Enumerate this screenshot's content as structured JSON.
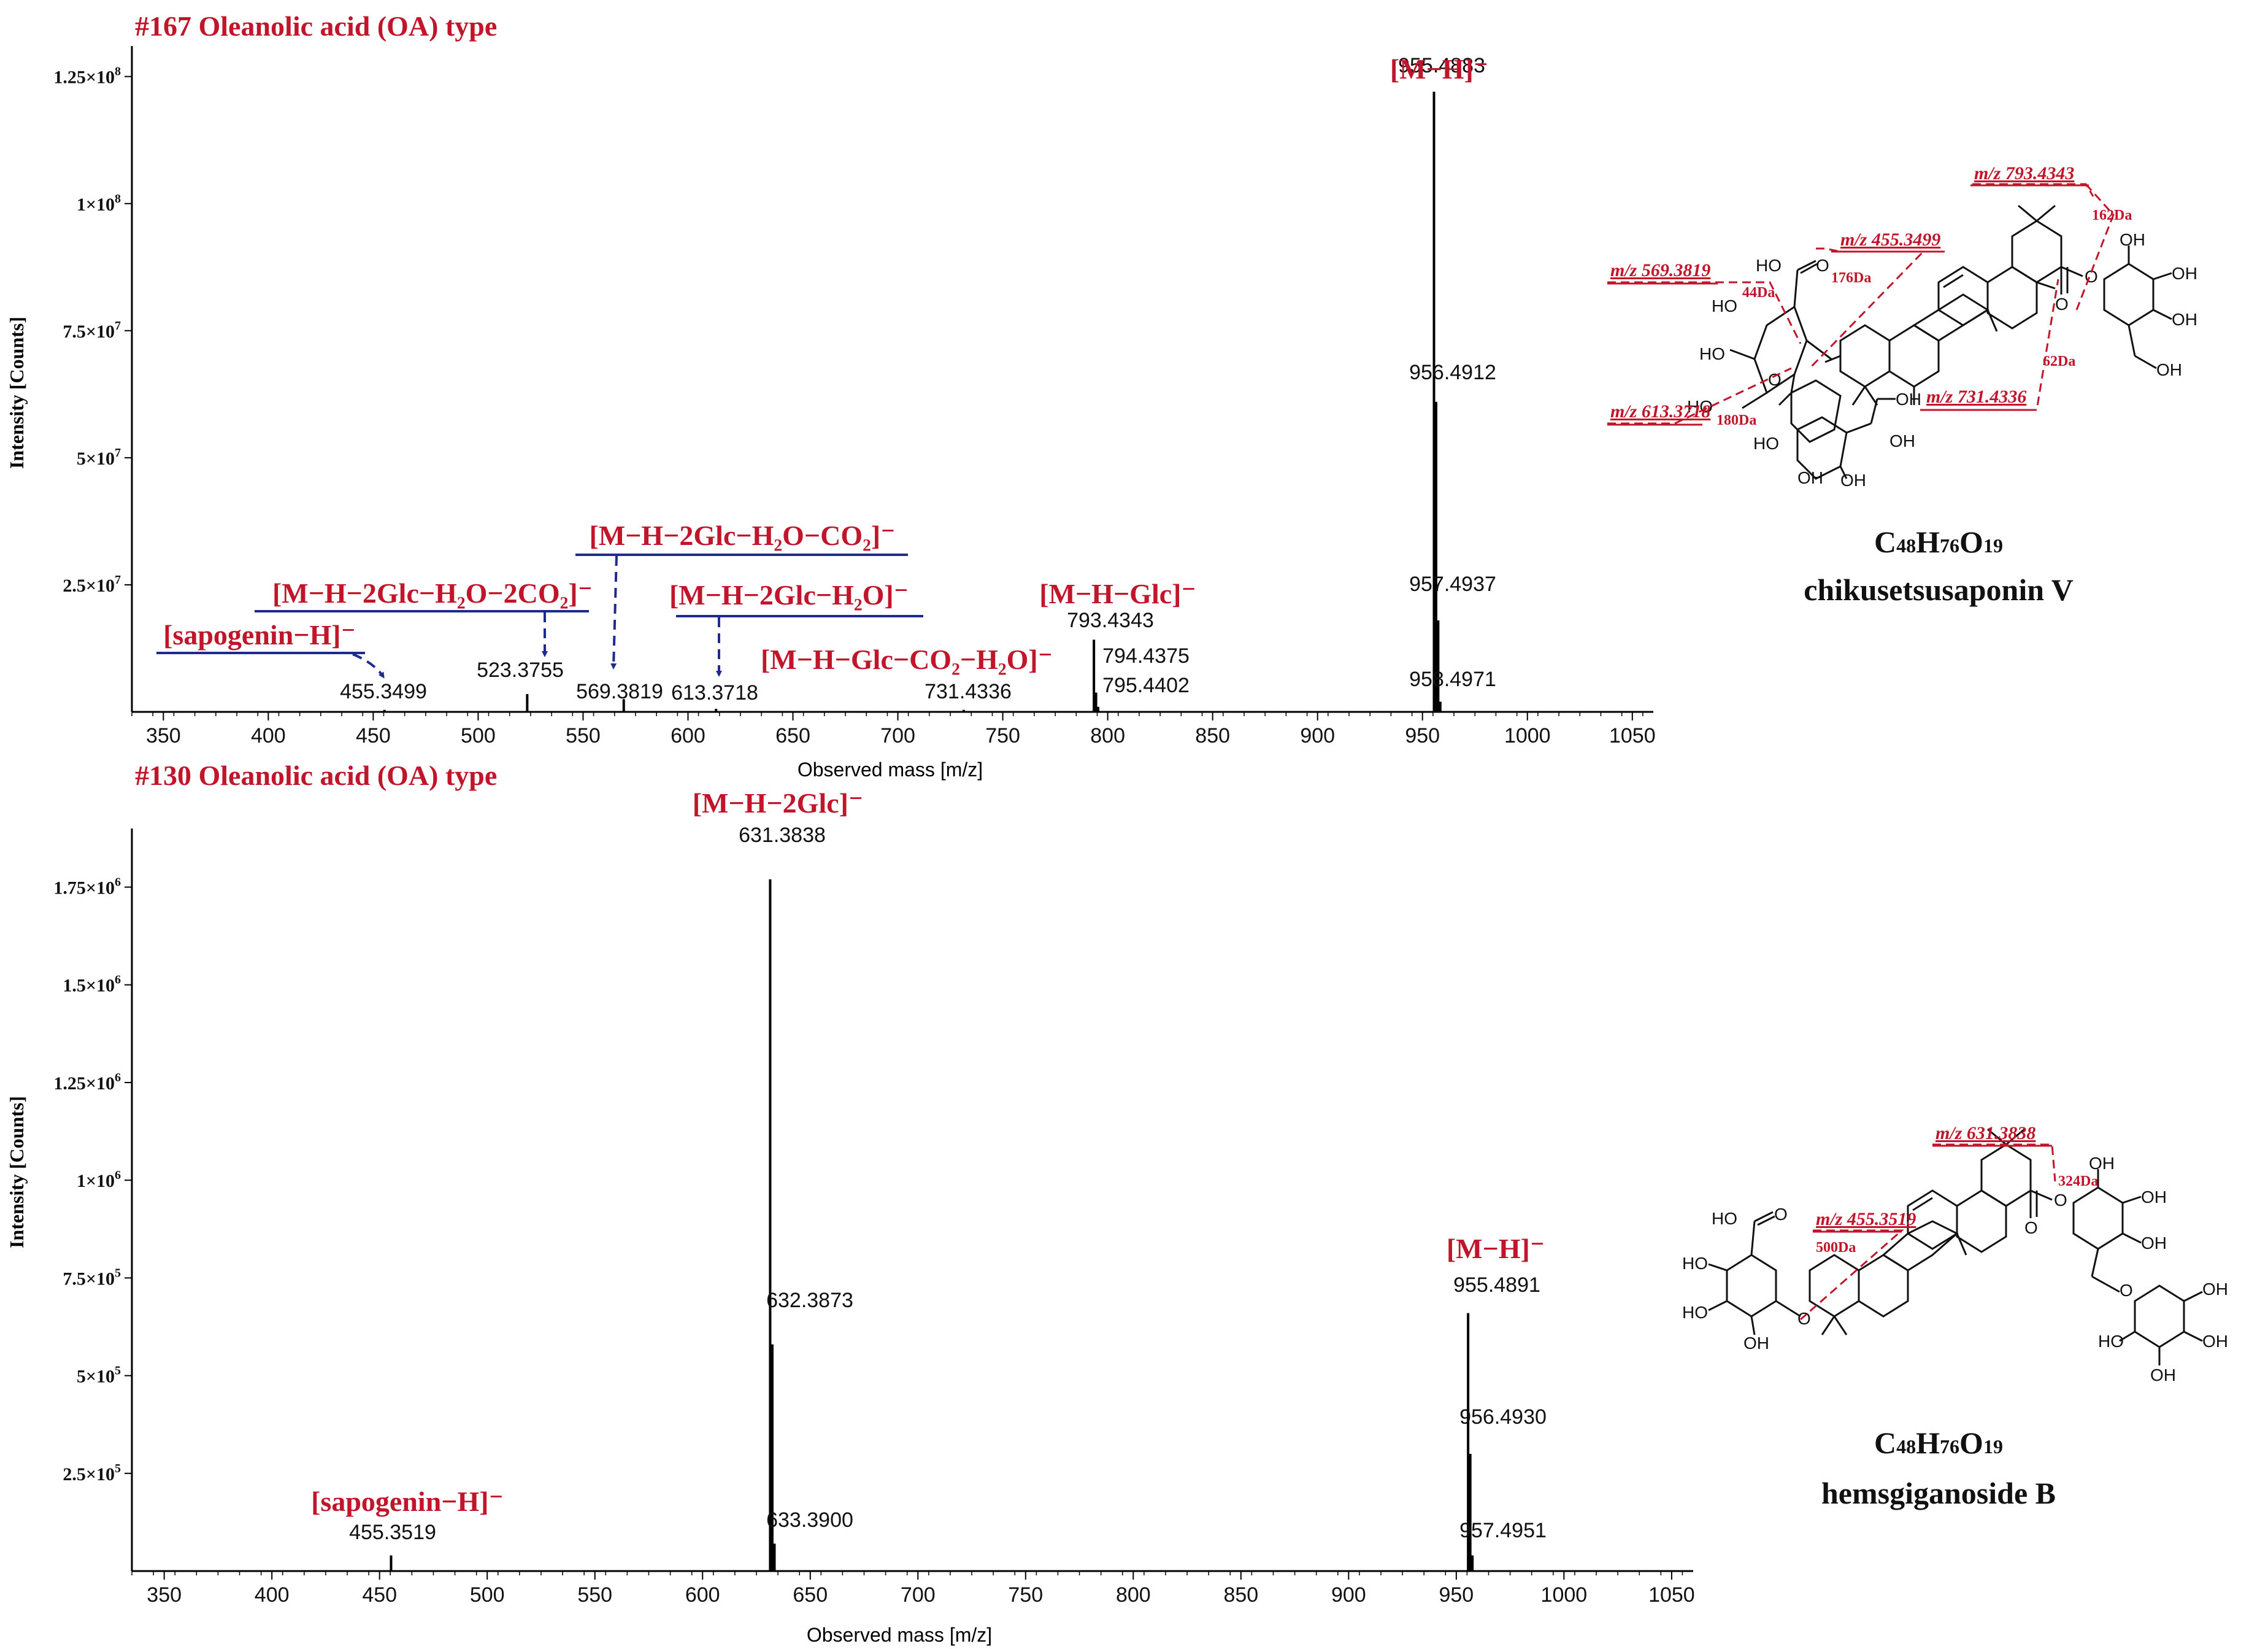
{
  "colors": {
    "title": "#c0152a",
    "blue": "#1e2a8f",
    "axis": "#000000",
    "bond": "#111111"
  },
  "chart_data": [
    {
      "type": "bar",
      "title": "#167 Oleanolic acid (OA) type",
      "xlabel": "Observed mass [m/z]",
      "ylabel": "Intensity [Counts]",
      "xlim": [
        335,
        1060
      ],
      "ylim": [
        0,
        131000000
      ],
      "xticks": [
        350,
        400,
        450,
        500,
        550,
        600,
        650,
        700,
        750,
        800,
        850,
        900,
        950,
        1000,
        1050
      ],
      "yticks": [
        {
          "value": 25000000,
          "mant": "2.5",
          "exp": "7"
        },
        {
          "value": 50000000,
          "mant": "5",
          "exp": "7"
        },
        {
          "value": 75000000,
          "mant": "7.5",
          "exp": "7"
        },
        {
          "value": 100000000,
          "mant": "1",
          "exp": "8"
        },
        {
          "value": 125000000,
          "mant": "1.25",
          "exp": "8"
        }
      ],
      "peaks": [
        {
          "mz": 455.3499,
          "intensity": 400000,
          "label": "455.3499"
        },
        {
          "mz": 523.3755,
          "intensity": 3500000,
          "label": "523.3755"
        },
        {
          "mz": 569.3819,
          "intensity": 2500000,
          "label": "569.3819"
        },
        {
          "mz": 613.3718,
          "intensity": 600000,
          "label": "613.3718"
        },
        {
          "mz": 731.4336,
          "intensity": 400000,
          "label": "731.4336"
        },
        {
          "mz": 793.4343,
          "intensity": 14200000,
          "label": "793.4343"
        },
        {
          "mz": 794.4375,
          "intensity": 3800000,
          "label": "794.4375"
        },
        {
          "mz": 795.4402,
          "intensity": 1000000,
          "label": "795.4402"
        },
        {
          "mz": 955.4883,
          "intensity": 122000000,
          "label": "955.4883"
        },
        {
          "mz": 956.4912,
          "intensity": 61000000,
          "label": "956.4912"
        },
        {
          "mz": 957.4937,
          "intensity": 18000000,
          "label": "957.4937"
        },
        {
          "mz": 958.4971,
          "intensity": 2000000,
          "label": "958.4971"
        }
      ],
      "annotations": [
        {
          "text": "[M−H]⁻",
          "color": "red"
        },
        {
          "text": "[M−H−Glc]⁻",
          "color": "red"
        },
        {
          "text": "[M−H−Glc−CO₂−H₂O]⁻",
          "color": "red"
        },
        {
          "text": "[M−H−2Glc−H₂O−CO₂]⁻",
          "color": "red"
        },
        {
          "text": "[M−H−2Glc−H₂O−2CO₂]⁻",
          "color": "red"
        },
        {
          "text": "[M−H−2Glc−H₂O]⁻",
          "color": "red"
        },
        {
          "text": "[sapogenin−H]⁻",
          "color": "red"
        }
      ]
    },
    {
      "type": "bar",
      "title": "#130 Oleanolic acid (OA) type",
      "xlabel": "Observed mass [m/z]",
      "ylabel": "Intensity [Counts]",
      "xlim": [
        335,
        1060
      ],
      "ylim": [
        0,
        1900000
      ],
      "xticks": [
        350,
        400,
        450,
        500,
        550,
        600,
        650,
        700,
        750,
        800,
        850,
        900,
        950,
        1000,
        1050
      ],
      "yticks": [
        {
          "value": 250000,
          "mant": "2.5",
          "exp": "5"
        },
        {
          "value": 500000,
          "mant": "5",
          "exp": "5"
        },
        {
          "value": 750000,
          "mant": "7.5",
          "exp": "5"
        },
        {
          "value": 1000000,
          "mant": "1",
          "exp": "6"
        },
        {
          "value": 1250000,
          "mant": "1.25",
          "exp": "6"
        },
        {
          "value": 1500000,
          "mant": "1.5",
          "exp": "6"
        },
        {
          "value": 1750000,
          "mant": "1.75",
          "exp": "6"
        }
      ],
      "peaks": [
        {
          "mz": 455.3519,
          "intensity": 40000,
          "label": "455.3519"
        },
        {
          "mz": 631.3838,
          "intensity": 1770000,
          "label": "631.3838"
        },
        {
          "mz": 632.3873,
          "intensity": 580000,
          "label": "632.3873"
        },
        {
          "mz": 633.39,
          "intensity": 70000,
          "label": "633.3900"
        },
        {
          "mz": 955.4891,
          "intensity": 660000,
          "label": "955.4891"
        },
        {
          "mz": 956.493,
          "intensity": 300000,
          "label": "956.4930"
        },
        {
          "mz": 957.4951,
          "intensity": 40000,
          "label": "957.4951"
        }
      ],
      "annotations": [
        {
          "text": "[M−H−2Glc]⁻",
          "color": "red"
        },
        {
          "text": "[M−H]⁻",
          "color": "red"
        },
        {
          "text": "[sapogenin−H]⁻",
          "color": "red"
        }
      ]
    }
  ],
  "structures": [
    {
      "formula_parts": [
        "C",
        "48",
        "H",
        "76",
        "O",
        "19"
      ],
      "name": "chikusetsusaponin V",
      "fragment_labels": [
        "m/z 793.4343",
        "162Da",
        "m/z 455.3499",
        "176Da",
        "m/z 569.3819",
        "44Da",
        "m/z 613.3718",
        "180Da",
        "m/z 731.4336",
        "62Da"
      ]
    },
    {
      "formula_parts": [
        "C",
        "48",
        "H",
        "76",
        "O",
        "19"
      ],
      "name": "hemsgiganoside B",
      "fragment_labels": [
        "m/z 631.3838",
        "324Da",
        "m/z 455.3519",
        "500Da"
      ]
    }
  ],
  "chem_labels": [
    "HO",
    "O",
    "OH"
  ]
}
